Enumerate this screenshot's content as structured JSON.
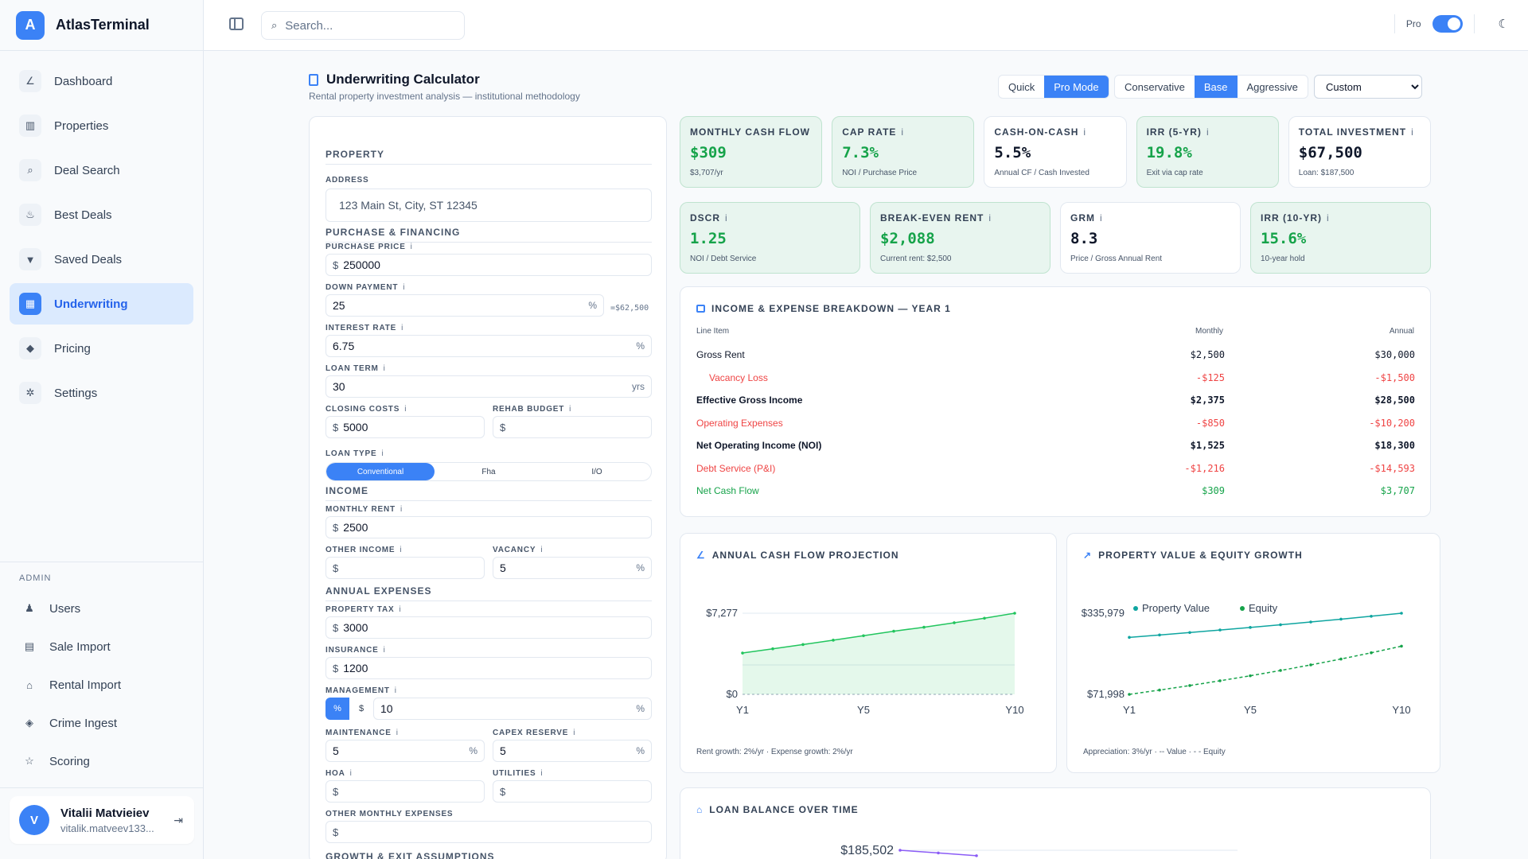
{
  "app": {
    "name": "AtlasTerminal",
    "logo_letter": "A"
  },
  "sidebar": {
    "items": [
      {
        "label": "Dashboard",
        "icon": "chart-icon",
        "glyph": "∠"
      },
      {
        "label": "Properties",
        "icon": "building-icon",
        "glyph": "▥"
      },
      {
        "label": "Deal Search",
        "icon": "search-icon",
        "glyph": "⌕"
      },
      {
        "label": "Best Deals",
        "icon": "flame-icon",
        "glyph": "♨"
      },
      {
        "label": "Saved Deals",
        "icon": "bookmark-icon",
        "glyph": "▼"
      },
      {
        "label": "Underwriting",
        "icon": "calculator-icon",
        "glyph": "▦",
        "active": true
      },
      {
        "label": "Pricing",
        "icon": "tag-icon",
        "glyph": "◆"
      },
      {
        "label": "Settings",
        "icon": "gear-icon",
        "glyph": "✲"
      }
    ],
    "admin_heading": "ADMIN",
    "admin_items": [
      {
        "label": "Users",
        "icon": "users-icon",
        "glyph": "♟"
      },
      {
        "label": "Sale Import",
        "icon": "file-import-icon",
        "glyph": "▤"
      },
      {
        "label": "Rental Import",
        "icon": "house-import-icon",
        "glyph": "⌂"
      },
      {
        "label": "Crime Ingest",
        "icon": "shield-icon",
        "glyph": "◈"
      },
      {
        "label": "Scoring",
        "icon": "star-icon",
        "glyph": "☆"
      }
    ],
    "user": {
      "initial": "V",
      "name": "Vitalii Matvieiev",
      "email": "vitalik.matveev133..."
    }
  },
  "topbar": {
    "search_placeholder": "Search...",
    "pro_label": "Pro"
  },
  "page": {
    "title": "Underwriting Calculator",
    "subtitle": "Rental property investment analysis — institutional methodology",
    "modes": [
      "Quick",
      "Pro Mode"
    ],
    "active_mode": "Pro Mode",
    "scenarios": [
      "Conservative",
      "Base",
      "Aggressive"
    ],
    "active_scenario": "Base",
    "preset": "Custom"
  },
  "form": {
    "sections": {
      "property": "PROPERTY",
      "purchase": "PURCHASE & FINANCING",
      "income": "INCOME",
      "expenses": "ANNUAL EXPENSES",
      "growth": "GROWTH & EXIT ASSUMPTIONS"
    },
    "info_glyph": "i",
    "address": {
      "label": "ADDRESS",
      "value": "123 Main St, City, ST 12345"
    },
    "purchase_price": {
      "label": "PURCHASE PRICE",
      "prefix": "$",
      "value": "250000"
    },
    "down_payment": {
      "label": "DOWN PAYMENT",
      "value": "25",
      "suffix": "%",
      "hint": "=$62,500"
    },
    "interest_rate": {
      "label": "INTEREST RATE",
      "value": "6.75",
      "suffix": "%"
    },
    "loan_term": {
      "label": "LOAN TERM",
      "value": "30",
      "suffix": "yrs"
    },
    "closing_costs": {
      "label": "CLOSING COSTS",
      "prefix": "$",
      "value": "5000"
    },
    "rehab_budget": {
      "label": "REHAB BUDGET",
      "prefix": "$",
      "value": ""
    },
    "loan_type": {
      "label": "LOAN TYPE",
      "options": [
        "Conventional",
        "Fha",
        "I/O"
      ],
      "selected": "Conventional"
    },
    "monthly_rent": {
      "label": "MONTHLY RENT",
      "prefix": "$",
      "value": "2500"
    },
    "other_income": {
      "label": "OTHER INCOME",
      "prefix": "$",
      "value": ""
    },
    "vacancy": {
      "label": "VACANCY",
      "value": "5",
      "suffix": "%"
    },
    "property_tax": {
      "label": "PROPERTY TAX",
      "prefix": "$",
      "value": "3000"
    },
    "insurance": {
      "label": "INSURANCE",
      "prefix": "$",
      "value": "1200"
    },
    "management": {
      "label": "MANAGEMENT",
      "unit_options": [
        "%",
        "$"
      ],
      "selected_unit": "%",
      "value": "10",
      "suffix": "%"
    },
    "maintenance": {
      "label": "MAINTENANCE",
      "value": "5",
      "suffix": "%"
    },
    "capex_reserve": {
      "label": "CAPEX RESERVE",
      "value": "5",
      "suffix": "%"
    },
    "hoa": {
      "label": "HOA",
      "prefix": "$",
      "value": ""
    },
    "utilities": {
      "label": "UTILITIES",
      "prefix": "$",
      "value": ""
    },
    "other_monthly": {
      "label": "OTHER MONTHLY EXPENSES",
      "prefix": "$",
      "value": ""
    }
  },
  "kpis_row1": [
    {
      "title": "MONTHLY CASH FLOW",
      "value": "$309",
      "sub": "$3,707/yr",
      "green": true,
      "info": false
    },
    {
      "title": "CAP RATE",
      "value": "7.3%",
      "sub": "NOI / Purchase Price",
      "green": true,
      "info": true
    },
    {
      "title": "CASH-ON-CASH",
      "value": "5.5%",
      "sub": "Annual CF / Cash Invested",
      "green": false,
      "info": true
    },
    {
      "title": "IRR (5-YR)",
      "value": "19.8%",
      "sub": "Exit via cap rate",
      "green": true,
      "info": true
    },
    {
      "title": "TOTAL INVESTMENT",
      "value": "$67,500",
      "sub": "Loan: $187,500",
      "green": false,
      "info": true
    }
  ],
  "kpis_row2": [
    {
      "title": "DSCR",
      "value": "1.25",
      "sub": "NOI / Debt Service",
      "green": true,
      "info": true
    },
    {
      "title": "BREAK-EVEN RENT",
      "value": "$2,088",
      "sub": "Current rent: $2,500",
      "green": true,
      "info": true
    },
    {
      "title": "GRM",
      "value": "8.3",
      "sub": "Price / Gross Annual Rent",
      "green": false,
      "info": true
    },
    {
      "title": "IRR (10-YR)",
      "value": "15.6%",
      "sub": "10-year hold",
      "green": true,
      "info": true
    }
  ],
  "breakdown": {
    "title": "INCOME & EXPENSE BREAKDOWN — YEAR 1",
    "headers": [
      "Line Item",
      "Monthly",
      "Annual"
    ],
    "rows": [
      {
        "item": "Gross Rent",
        "monthly": "$2,500",
        "annual": "$30,000",
        "style": "normal"
      },
      {
        "item": "Vacancy Loss",
        "monthly": "-$125",
        "annual": "-$1,500",
        "style": "red-indent"
      },
      {
        "item": "Effective Gross Income",
        "monthly": "$2,375",
        "annual": "$28,500",
        "style": "bold"
      },
      {
        "item": "Operating Expenses",
        "monthly": "-$850",
        "annual": "-$10,200",
        "style": "red"
      },
      {
        "item": "Net Operating Income (NOI)",
        "monthly": "$1,525",
        "annual": "$18,300",
        "style": "bold"
      },
      {
        "item": "Debt Service (P&I)",
        "monthly": "-$1,216",
        "annual": "-$14,593",
        "style": "red"
      },
      {
        "item": "Net Cash Flow",
        "monthly": "$309",
        "annual": "$3,707",
        "style": "green"
      }
    ]
  },
  "chart_data": [
    {
      "type": "area",
      "title": "ANNUAL CASH FLOW PROJECTION",
      "x": [
        1,
        2,
        3,
        4,
        5,
        6,
        7,
        8,
        9,
        10
      ],
      "xticks": [
        "Y1",
        "Y5",
        "Y10"
      ],
      "yticks": [
        "$7,277",
        "$0"
      ],
      "ylim": [
        0,
        7277
      ],
      "series": [
        {
          "values": [
            3707,
            4086,
            4470,
            4862,
            5260,
            5666,
            6023,
            6424,
            6830,
            7277
          ]
        }
      ],
      "color": "#22c55e",
      "footnote": "Rent growth: 2%/yr · Expense growth: 2%/yr"
    },
    {
      "type": "line",
      "title": "PROPERTY VALUE & EQUITY GROWTH",
      "x": [
        1,
        2,
        3,
        4,
        5,
        6,
        7,
        8,
        9,
        10
      ],
      "xticks": [
        "Y1",
        "Y5",
        "Y10"
      ],
      "yticks": [
        "$335,979",
        "$71,998"
      ],
      "ylim": [
        71998,
        335979
      ],
      "legend": "top-left",
      "series": [
        {
          "name": "Property Value",
          "values": [
            257500,
            265225,
            273182,
            281377,
            289819,
            298513,
            307468,
            316693,
            326193,
            335979
          ],
          "color": "#0ea5a0",
          "dash": false
        },
        {
          "name": "Equity",
          "values": [
            71998,
            86000,
            100700,
            116200,
            132500,
            149700,
            167800,
            187000,
            207300,
            228800
          ],
          "color": "#16a34a",
          "dash": true
        }
      ],
      "footnote": "Appreciation: 3%/yr · -- Value · - - Equity"
    },
    {
      "type": "line",
      "title": "LOAN BALANCE OVER TIME",
      "yticks": [
        "$185,502"
      ],
      "series": [
        {
          "values": [
            185502,
            183400,
            181200
          ]
        }
      ],
      "color": "#8b5cf6"
    }
  ]
}
